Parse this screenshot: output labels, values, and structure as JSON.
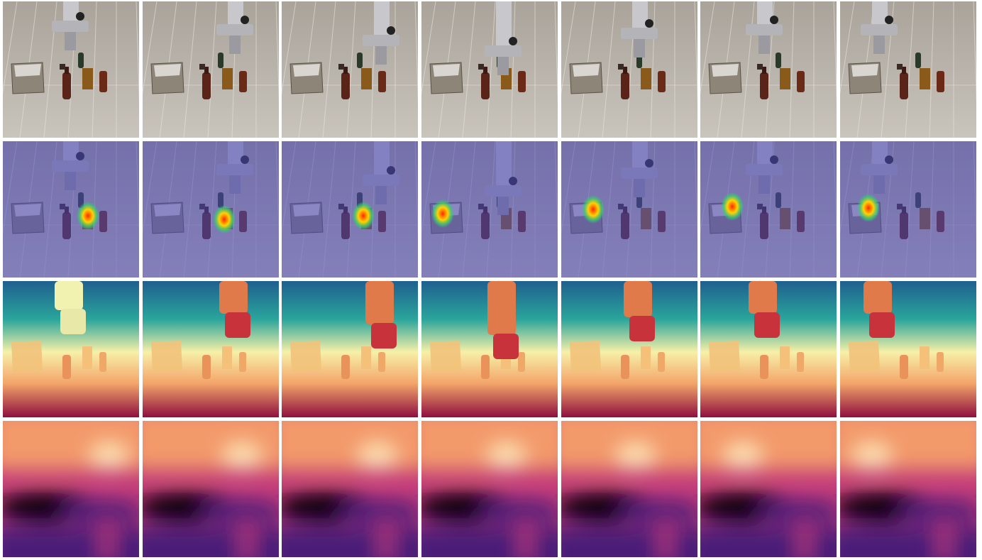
{
  "figure": {
    "rows": [
      {
        "id": "rgb",
        "frames": 7
      },
      {
        "id": "attention",
        "frames": 7
      },
      {
        "id": "depth",
        "frames": 7
      },
      {
        "id": "feature",
        "frames": 7
      }
    ],
    "colormaps": {
      "floor": [
        "#c9c4bc",
        "#a9a39a"
      ],
      "attention_tint": "#4a47b8",
      "depth": [
        "#1f5f8f",
        "#2aa59b",
        "#f6f0a8",
        "#f3a56a",
        "#8e0f3f"
      ],
      "feature": [
        "#0b0610",
        "#4a1f78",
        "#c23a7a",
        "#f39a6a",
        "#fde3b4"
      ]
    }
  }
}
